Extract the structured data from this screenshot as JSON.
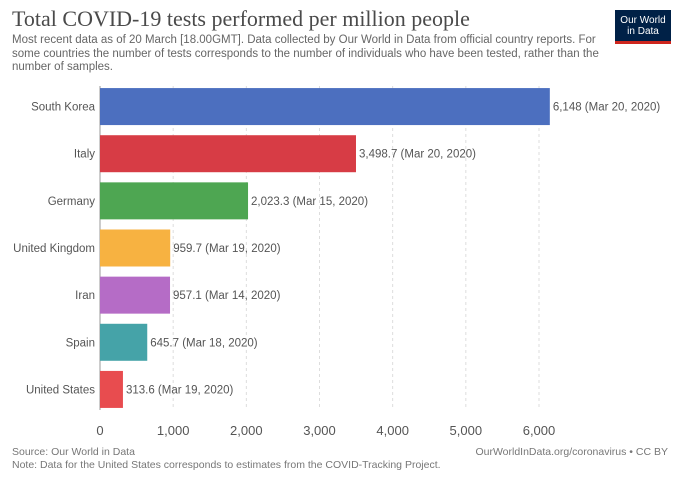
{
  "header": {
    "title": "Total COVID-19 tests performed per million people",
    "subtitle": "Most recent data as of 20 March [18.00GMT]. Data collected by Our World in Data from official country reports. For some countries the number of tests corresponds to the number of individuals who have been tested, rather than the number of samples.",
    "logo_line1": "Our World",
    "logo_line2": "in Data"
  },
  "footer": {
    "source": "Source: Our World in Data",
    "note": "Note: Data for the United States corresponds to estimates from the COVID-Tracking Project.",
    "license": "OurWorldInData.org/coronavirus • CC BY"
  },
  "chart_data": {
    "type": "bar",
    "orientation": "horizontal",
    "title": "Total COVID-19 tests performed per million people",
    "categories": [
      "South Korea",
      "Italy",
      "Germany",
      "United Kingdom",
      "Iran",
      "Spain",
      "United States"
    ],
    "values": [
      6148,
      3498.7,
      2023.3,
      959.7,
      957.1,
      645.7,
      313.6
    ],
    "data_labels": [
      "6,148 (Mar 20, 2020)",
      "3,498.7 (Mar 20, 2020)",
      "2,023.3 (Mar 15, 2020)",
      "959.7 (Mar 19, 2020)",
      "957.1 (Mar 14, 2020)",
      "645.7 (Mar 18, 2020)",
      "313.6 (Mar 19, 2020)"
    ],
    "colors": [
      "#4c6fbf",
      "#d73c45",
      "#4ea652",
      "#f7b241",
      "#b56cc6",
      "#45a3a8",
      "#e84c4f"
    ],
    "xlim": [
      0,
      6000
    ],
    "xticks": [
      0,
      1000,
      2000,
      3000,
      4000,
      5000,
      6000
    ],
    "xtick_labels": [
      "0",
      "1,000",
      "2,000",
      "3,000",
      "4,000",
      "5,000",
      "6,000"
    ],
    "grid": "vertical dashed"
  }
}
